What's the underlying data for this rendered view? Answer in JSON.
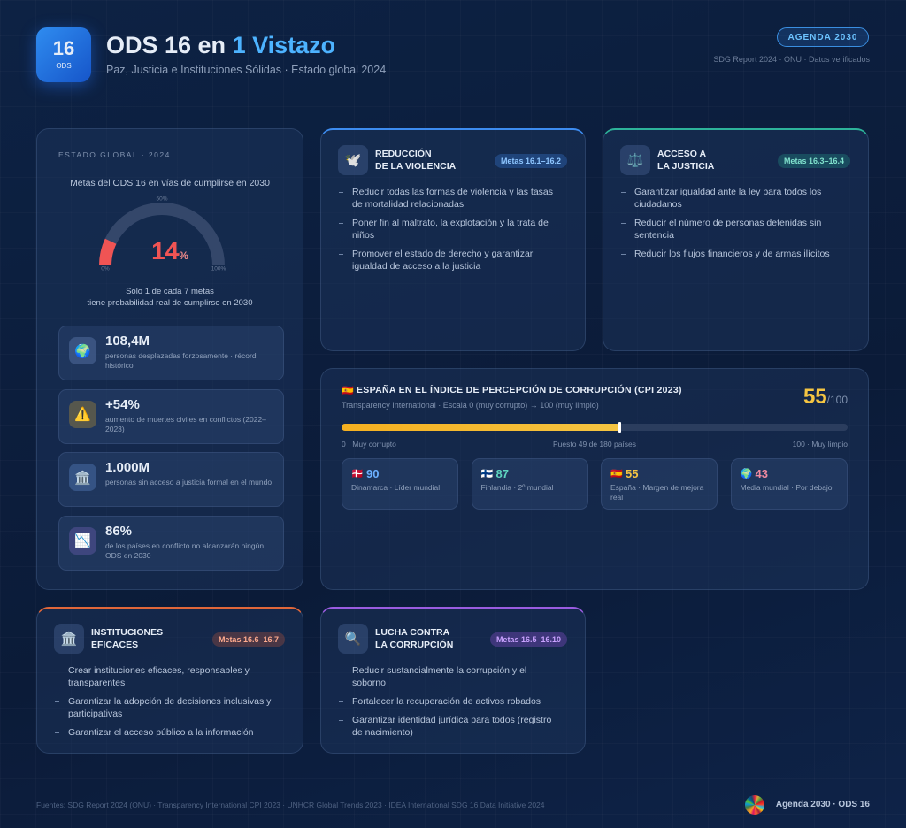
{
  "header": {
    "badge_number": "16",
    "badge_label": "ODS",
    "title": "ODS 16 en ",
    "title_highlight": "1 Vistazo",
    "subtitle": "Paz, Justicia e Instituciones Sólidas · Estado global 2024",
    "tag": "AGENDA 2030",
    "source_note": "SDG Report 2024 · ONU · Datos verificados"
  },
  "global_status": {
    "eyebrow": "ESTADO GLOBAL · 2024",
    "caption": "Metas del ODS 16 en vías de cumplirse en 2030",
    "gauge": {
      "value": 14,
      "unit": "%",
      "range": [
        0,
        100
      ],
      "ticks": [
        {
          "value": 0,
          "label": "0%"
        },
        {
          "value": 50,
          "label": "50%"
        },
        {
          "value": 100,
          "label": "100%"
        }
      ]
    },
    "note_lines": [
      "Solo 1 de cada 7 metas",
      "tiene probabilidad real de cumplirse en 2030"
    ],
    "stats": [
      {
        "icon": "🌍",
        "value": "108,4M",
        "label": "personas desplazadas forzosamente · récord histórico"
      },
      {
        "icon": "⚠️",
        "value": "+54%",
        "label": "aumento de muertes civiles en conflictos (2022–2023)"
      },
      {
        "icon": "🏛️",
        "value": "1.000M",
        "label": "personas sin acceso a justicia formal en el mundo"
      },
      {
        "icon": "📉",
        "value": "86%",
        "label": "de los países en conflicto no alcanzarán ningún ODS en 2030"
      }
    ]
  },
  "cards": [
    {
      "icon": "🕊️",
      "title_lines": [
        "REDUCCIÓN",
        "DE LA VIOLENCIA"
      ],
      "tag": "Metas 16.1–16.2",
      "items": [
        "Reducir todas las formas de violencia y las tasas de mortalidad relacionadas",
        "Poner fin al maltrato, la explotación y la trata de niños",
        "Promover el estado de derecho y garantizar igualdad de acceso a la justicia"
      ]
    },
    {
      "icon": "⚖️",
      "title_lines": [
        "ACCESO A",
        "LA JUSTICIA"
      ],
      "tag": "Metas 16.3–16.4",
      "items": [
        "Garantizar igualdad ante la ley para todos los ciudadanos",
        "Reducir el número de personas detenidas sin sentencia",
        "Reducir los flujos financieros y de armas ilícitos"
      ]
    },
    {
      "icon": "🏛️",
      "title_lines": [
        "INSTITUCIONES",
        "EFICACES"
      ],
      "tag": "Metas 16.6–16.7",
      "items": [
        "Crear instituciones eficaces, responsables y transparentes",
        "Garantizar la adopción de decisiones inclusivas y participativas",
        "Garantizar el acceso público a la información"
      ]
    },
    {
      "icon": "🔍",
      "title_lines": [
        "LUCHA CONTRA",
        "LA CORRUPCIÓN"
      ],
      "tag": "Metas 16.5–16.10",
      "items": [
        "Reducir sustancialmente la corrupción y el soborno",
        "Fortalecer la recuperación de activos robados",
        "Garantizar identidad jurídica para todos (registro de nacimiento)"
      ]
    }
  ],
  "cpi": {
    "flag": "🇪🇸",
    "title": "ESPAÑA EN EL ÍNDICE DE PERCEPCIÓN DE CORRUPCIÓN (CPI 2023)",
    "subtitle": "Transparency International · Escala 0 (muy corrupto) → 100 (muy limpio)",
    "score": 55,
    "score_suffix": "/100",
    "range": [
      0,
      100
    ],
    "scale_left": "0 · Muy corrupto",
    "scale_center": "Puesto 49 de 180 países",
    "scale_right": "100 · Muy limpio",
    "countries": [
      {
        "flag": "🇩🇰",
        "score": 90,
        "label": "Dinamarca · Líder mundial"
      },
      {
        "flag": "🇫🇮",
        "score": 87,
        "label": "Finlandia · 2º mundial"
      },
      {
        "flag": "🇪🇸",
        "score": 55,
        "label": "España · Margen de mejora real"
      },
      {
        "flag": "🌍",
        "score": 43,
        "label": "Media mundial · Por debajo"
      }
    ]
  },
  "footer": {
    "sources": "Fuentes: SDG Report 2024 (ONU) · Transparency International CPI 2023 · UNHCR Global Trends 2023 · IDEA International SDG 16 Data Initiative 2024",
    "brand": "Agenda 2030 · ODS 16"
  }
}
